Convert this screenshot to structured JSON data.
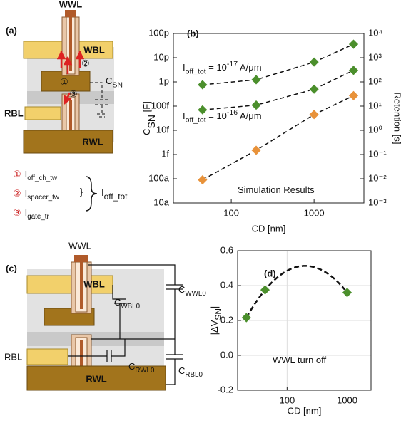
{
  "panel_a": {
    "label": "(a)",
    "wwl": "WWL",
    "wbl": "WBL",
    "rbl": "RBL",
    "rwl": "RWL",
    "csn": {
      "base": "C",
      "sub": "SN"
    },
    "markers": [
      "①",
      "②",
      "③"
    ],
    "legend": [
      {
        "num": "①",
        "base": "I",
        "sub": "off_ch_tw"
      },
      {
        "num": "②",
        "base": "I",
        "sub": "spacer_tw"
      },
      {
        "num": "③",
        "base": "I",
        "sub": "gate_tr"
      }
    ],
    "brace": "}",
    "total": {
      "base": "I",
      "sub": "off_tot"
    }
  },
  "panel_c": {
    "label": "(c)",
    "wwl": "WWL",
    "wbl": "WBL",
    "rbl": "RBL",
    "rwl": "RWL",
    "caps": [
      {
        "base": "C",
        "sub": "WWL0"
      },
      {
        "base": "C",
        "sub": "WBL0"
      },
      {
        "base": "C",
        "sub": "RWL0"
      },
      {
        "base": "C",
        "sub": "RBL0"
      }
    ]
  },
  "chart_data": [
    {
      "type": "scatter",
      "label": "(b)",
      "xlabel": "CD [nm]",
      "ylabel": {
        "base": "C",
        "sub": "SN",
        "end": " [F]"
      },
      "y2label": "Retention [s]",
      "xscale": "log",
      "yscale": "log",
      "y2scale": "log",
      "xlim": [
        20,
        4000
      ],
      "xticks": [
        100,
        1000
      ],
      "ylim": [
        1e-17,
        1e-10
      ],
      "yticks": [
        {
          "value": 1e-17,
          "label": "10a"
        },
        {
          "value": 1e-16,
          "label": "100a"
        },
        {
          "value": 1e-15,
          "label": "1f"
        },
        {
          "value": 1e-14,
          "label": "10f"
        },
        {
          "value": 1e-13,
          "label": "100f"
        },
        {
          "value": 1e-12,
          "label": "1p"
        },
        {
          "value": 1e-11,
          "label": "10p"
        },
        {
          "value": 1e-10,
          "label": "100p"
        }
      ],
      "y2lim": [
        0.001,
        10000
      ],
      "y2ticks": [
        {
          "value": 0.001,
          "label": "10⁻³"
        },
        {
          "value": 0.01,
          "label": "10⁻²"
        },
        {
          "value": 0.1,
          "label": "10⁻¹"
        },
        {
          "value": 1,
          "label": "10⁰"
        },
        {
          "value": 10,
          "label": "10¹"
        },
        {
          "value": 100,
          "label": "10²"
        },
        {
          "value": 1000,
          "label": "10³"
        },
        {
          "value": 10000,
          "label": "10⁴"
        }
      ],
      "x": [
        45,
        200,
        1000,
        3000
      ],
      "line_style": "dashed",
      "marker": "diamond",
      "series": [
        {
          "color": "#e8923a",
          "values": [
            9e-17,
            1.5e-15,
            4.5e-14,
            2.7e-13
          ]
        },
        {
          "color": "#4b8f2c",
          "axis": "y2",
          "values": [
            76,
            123,
            660,
            3600
          ]
        },
        {
          "color": "#4b8f2c",
          "axis": "y2",
          "values": [
            7,
            11,
            50,
            300
          ]
        }
      ],
      "annotations": [
        {
          "base": "I",
          "sub": "off_tot",
          "mid": " = 10",
          "sup": "-17",
          "end": " A/μm"
        },
        {
          "base": "I",
          "sub": "off_tot",
          "mid": " = 10",
          "sup": "-16",
          "end": " A/μm"
        },
        {
          "text": "Simulation Results"
        }
      ]
    },
    {
      "type": "scatter",
      "label": "(d)",
      "xlabel": "CD [nm]",
      "ylabel": {
        "base": "|ΔV",
        "sub": "SN",
        "end": "|"
      },
      "xscale": "log",
      "xlim": [
        15,
        2500
      ],
      "xticks": [
        100,
        1000
      ],
      "ylim": [
        -0.2,
        0.6
      ],
      "yticks": [
        -0.2,
        {
          "value": 0,
          "label": "0.0"
        },
        0.2,
        0.4,
        0.6
      ],
      "grid": true,
      "x": [
        21,
        43,
        1000
      ],
      "marker": "diamond",
      "trend_line": "dashed",
      "series": [
        {
          "color": "#4b8f2c",
          "values": [
            0.216,
            0.375,
            0.36
          ]
        }
      ],
      "annotations": [
        {
          "text": "WWL turn off"
        }
      ]
    }
  ]
}
